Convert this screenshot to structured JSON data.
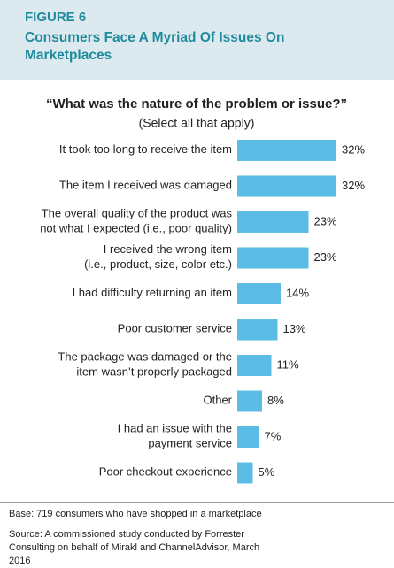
{
  "chart_data": {
    "type": "hbar",
    "figure_label": "FIGURE 6",
    "title": "Consumers Face A Myriad Of Issues On Marketplaces",
    "question": "“What was the nature of the problem or issue?”",
    "subtitle": "(Select all that apply)",
    "categories": [
      "It took too long to receive the item",
      "The item I received was damaged",
      "The overall quality of the product was\nnot what I expected (i.e., poor quality)",
      "I received the wrong item\n(i.e., product, size, color etc.)",
      "I had difficulty returning an item",
      "Poor customer service",
      "The package was damaged or the\nitem wasn’t properly packaged",
      "Other",
      "I had an issue with the\npayment service",
      "Poor checkout experience"
    ],
    "values": [
      32,
      32,
      23,
      23,
      14,
      13,
      11,
      8,
      7,
      5
    ],
    "value_labels": [
      "32%",
      "32%",
      "23%",
      "23%",
      "14%",
      "13%",
      "11%",
      "8%",
      "7%",
      "5%"
    ],
    "color": "#5bbde6",
    "base": "Base: 719 consumers who have shopped in a marketplace",
    "source": "Source: A commissioned study conducted by Forrester Consulting on behalf of Mirakl and ChannelAdvisor, March 2016"
  }
}
